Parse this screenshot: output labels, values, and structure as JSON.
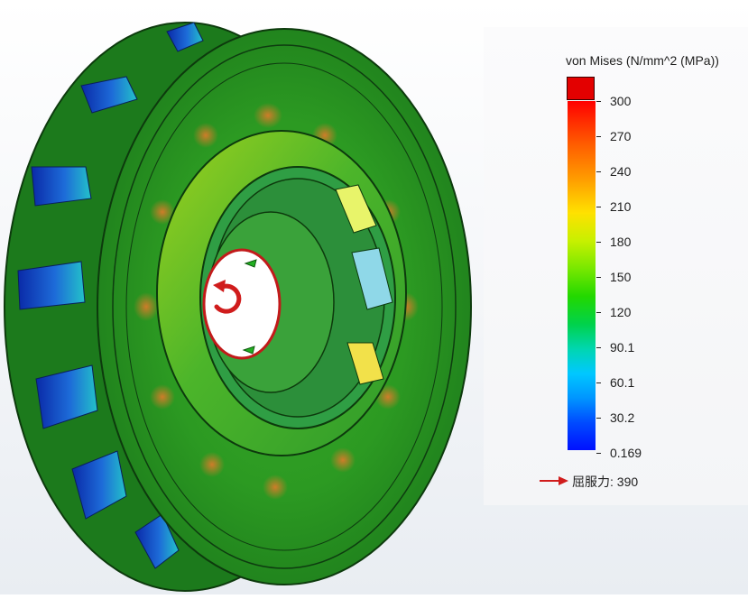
{
  "legend": {
    "title": "von Mises (N/mm^2 (MPa))",
    "ticks": [
      "300",
      "270",
      "240",
      "210",
      "180",
      "150",
      "120",
      "90.1",
      "60.1",
      "30.2",
      "0.169"
    ],
    "yield_label": "屈服力: 390"
  },
  "colors": {
    "max_cap": "#e30000",
    "impeller_base": "#1f8a1f",
    "arrow": "#d01c1c"
  },
  "icons": {
    "yield_marker": "arrow-right-icon",
    "rotation_marker": "rotation-arrow-icon",
    "fixture_marker": "fixture-arrow-icon"
  }
}
